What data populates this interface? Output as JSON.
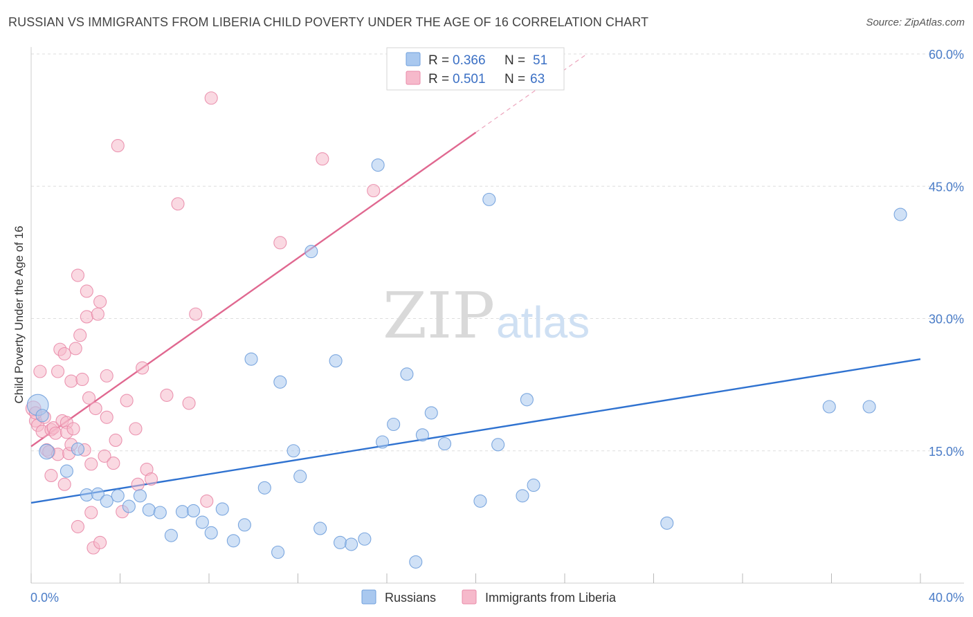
{
  "header": {
    "title": "RUSSIAN VS IMMIGRANTS FROM LIBERIA CHILD POVERTY UNDER THE AGE OF 16 CORRELATION CHART",
    "source": "Source: ZipAtlas.com"
  },
  "watermark": {
    "zip": "ZIP",
    "atlas": "atlas"
  },
  "legend_box": {
    "rows": [
      {
        "r_label": "R =",
        "r_value": "0.366",
        "n_label": "N =",
        "n_value": "51"
      },
      {
        "r_label": "R =",
        "r_value": "0.501",
        "n_label": "N =",
        "n_value": "63"
      }
    ]
  },
  "bottom_legend": {
    "items": [
      {
        "label": "Russians"
      },
      {
        "label": "Immigrants from Liberia"
      }
    ]
  },
  "colors": {
    "blue_fill": "#a9c8ef",
    "blue_stroke": "#6f9fdc",
    "blue_line": "#2f72d0",
    "pink_fill": "#f6b9cb",
    "pink_stroke": "#e98aa8",
    "pink_line": "#e06890",
    "grid": "#dddddd",
    "tick_text": "#4a7cc7"
  },
  "chart_data": {
    "type": "scatter",
    "title": "RUSSIAN VS IMMIGRANTS FROM LIBERIA CHILD POVERTY UNDER THE AGE OF 16 CORRELATION CHART",
    "xlabel": "",
    "ylabel": "Child Poverty Under the Age of 16",
    "xlim": [
      0,
      40
    ],
    "ylim": [
      0,
      60
    ],
    "x_tick_labels": [
      "0.0%",
      "40.0%"
    ],
    "y_ticks": [
      15,
      30,
      45,
      60
    ],
    "y_tick_labels": [
      "15.0%",
      "30.0%",
      "45.0%",
      "60.0%"
    ],
    "grid": true,
    "legend_position": "top-center",
    "series": [
      {
        "name": "Russians",
        "r": 0.366,
        "n": 51,
        "trend": {
          "x": [
            0,
            40
          ],
          "y": [
            9.1,
            25.4
          ]
        },
        "points": [
          {
            "x": 0.3,
            "y": 20.2,
            "s": 1.7
          },
          {
            "x": 0.7,
            "y": 14.9,
            "s": 1.2
          },
          {
            "x": 1.6,
            "y": 12.7
          },
          {
            "x": 2.1,
            "y": 15.2
          },
          {
            "x": 2.5,
            "y": 10.0
          },
          {
            "x": 3.0,
            "y": 10.1
          },
          {
            "x": 3.4,
            "y": 9.3
          },
          {
            "x": 3.9,
            "y": 9.9
          },
          {
            "x": 4.4,
            "y": 8.7
          },
          {
            "x": 4.9,
            "y": 9.9
          },
          {
            "x": 5.3,
            "y": 8.3
          },
          {
            "x": 5.8,
            "y": 8.0
          },
          {
            "x": 6.3,
            "y": 5.4
          },
          {
            "x": 6.8,
            "y": 8.1
          },
          {
            "x": 7.3,
            "y": 8.2
          },
          {
            "x": 7.7,
            "y": 6.9
          },
          {
            "x": 8.1,
            "y": 5.7
          },
          {
            "x": 8.6,
            "y": 8.4
          },
          {
            "x": 9.1,
            "y": 4.8
          },
          {
            "x": 9.6,
            "y": 6.6
          },
          {
            "x": 9.9,
            "y": 25.4
          },
          {
            "x": 10.5,
            "y": 10.8
          },
          {
            "x": 11.1,
            "y": 3.5
          },
          {
            "x": 11.2,
            "y": 22.8
          },
          {
            "x": 11.8,
            "y": 15.0
          },
          {
            "x": 12.1,
            "y": 12.1
          },
          {
            "x": 12.6,
            "y": 37.6
          },
          {
            "x": 13.0,
            "y": 6.2
          },
          {
            "x": 13.7,
            "y": 25.2
          },
          {
            "x": 13.9,
            "y": 4.6
          },
          {
            "x": 14.4,
            "y": 4.4
          },
          {
            "x": 15.0,
            "y": 5.0
          },
          {
            "x": 15.6,
            "y": 47.4
          },
          {
            "x": 15.8,
            "y": 16.0
          },
          {
            "x": 16.3,
            "y": 18.0
          },
          {
            "x": 16.9,
            "y": 23.7
          },
          {
            "x": 17.3,
            "y": 2.4
          },
          {
            "x": 17.6,
            "y": 16.8
          },
          {
            "x": 18.0,
            "y": 19.3
          },
          {
            "x": 18.6,
            "y": 15.8
          },
          {
            "x": 20.2,
            "y": 9.3
          },
          {
            "x": 20.6,
            "y": 43.5
          },
          {
            "x": 21.0,
            "y": 15.7
          },
          {
            "x": 22.1,
            "y": 9.9
          },
          {
            "x": 22.3,
            "y": 20.8
          },
          {
            "x": 22.6,
            "y": 11.1
          },
          {
            "x": 28.6,
            "y": 6.8
          },
          {
            "x": 35.9,
            "y": 20.0
          },
          {
            "x": 37.7,
            "y": 20.0
          },
          {
            "x": 39.1,
            "y": 41.8
          },
          {
            "x": 0.5,
            "y": 19.0
          }
        ]
      },
      {
        "name": "Immigrants from Liberia",
        "r": 0.501,
        "n": 63,
        "trend": {
          "x": [
            0,
            20
          ],
          "y": [
            15.5,
            51.1
          ],
          "dashed_to": [
            25,
            60
          ]
        },
        "points": [
          {
            "x": 0.1,
            "y": 19.8,
            "s": 1.2
          },
          {
            "x": 0.2,
            "y": 18.4
          },
          {
            "x": 0.3,
            "y": 17.9
          },
          {
            "x": 0.4,
            "y": 24.0
          },
          {
            "x": 0.5,
            "y": 17.2
          },
          {
            "x": 0.6,
            "y": 18.8
          },
          {
            "x": 0.7,
            "y": 15.1
          },
          {
            "x": 0.8,
            "y": 14.9
          },
          {
            "x": 0.9,
            "y": 17.4
          },
          {
            "x": 0.9,
            "y": 12.2
          },
          {
            "x": 1.0,
            "y": 17.6
          },
          {
            "x": 1.1,
            "y": 17.0
          },
          {
            "x": 1.2,
            "y": 14.6
          },
          {
            "x": 1.2,
            "y": 24.0
          },
          {
            "x": 1.3,
            "y": 26.5
          },
          {
            "x": 1.4,
            "y": 18.4
          },
          {
            "x": 1.5,
            "y": 26.0
          },
          {
            "x": 1.5,
            "y": 11.2
          },
          {
            "x": 1.6,
            "y": 18.2
          },
          {
            "x": 1.6,
            "y": 17.1
          },
          {
            "x": 1.7,
            "y": 14.7
          },
          {
            "x": 1.8,
            "y": 15.7
          },
          {
            "x": 1.8,
            "y": 22.9
          },
          {
            "x": 1.9,
            "y": 17.5
          },
          {
            "x": 2.0,
            "y": 26.6
          },
          {
            "x": 2.1,
            "y": 6.4
          },
          {
            "x": 2.1,
            "y": 34.9
          },
          {
            "x": 2.2,
            "y": 28.1
          },
          {
            "x": 2.3,
            "y": 23.1
          },
          {
            "x": 2.4,
            "y": 15.1
          },
          {
            "x": 2.5,
            "y": 33.1
          },
          {
            "x": 2.5,
            "y": 30.2
          },
          {
            "x": 2.6,
            "y": 21.0
          },
          {
            "x": 2.7,
            "y": 13.5
          },
          {
            "x": 2.7,
            "y": 8.0
          },
          {
            "x": 2.8,
            "y": 4.0
          },
          {
            "x": 2.9,
            "y": 19.8
          },
          {
            "x": 3.0,
            "y": 30.5
          },
          {
            "x": 3.1,
            "y": 31.9
          },
          {
            "x": 3.1,
            "y": 4.6
          },
          {
            "x": 3.3,
            "y": 14.4
          },
          {
            "x": 3.4,
            "y": 23.5
          },
          {
            "x": 3.4,
            "y": 18.8
          },
          {
            "x": 3.7,
            "y": 13.6
          },
          {
            "x": 3.8,
            "y": 16.2
          },
          {
            "x": 3.9,
            "y": 49.6
          },
          {
            "x": 4.1,
            "y": 8.1
          },
          {
            "x": 4.3,
            "y": 20.7
          },
          {
            "x": 4.7,
            "y": 17.5
          },
          {
            "x": 4.8,
            "y": 11.2
          },
          {
            "x": 5.0,
            "y": 24.4
          },
          {
            "x": 5.2,
            "y": 12.9
          },
          {
            "x": 5.4,
            "y": 11.8
          },
          {
            "x": 6.1,
            "y": 21.3
          },
          {
            "x": 6.6,
            "y": 43.0
          },
          {
            "x": 7.1,
            "y": 20.4
          },
          {
            "x": 7.4,
            "y": 30.5
          },
          {
            "x": 7.9,
            "y": 9.3
          },
          {
            "x": 8.1,
            "y": 55.0
          },
          {
            "x": 11.2,
            "y": 38.6
          },
          {
            "x": 13.1,
            "y": 48.1
          },
          {
            "x": 15.4,
            "y": 44.5
          },
          {
            "x": 0.2,
            "y": 19.3
          }
        ]
      }
    ]
  }
}
